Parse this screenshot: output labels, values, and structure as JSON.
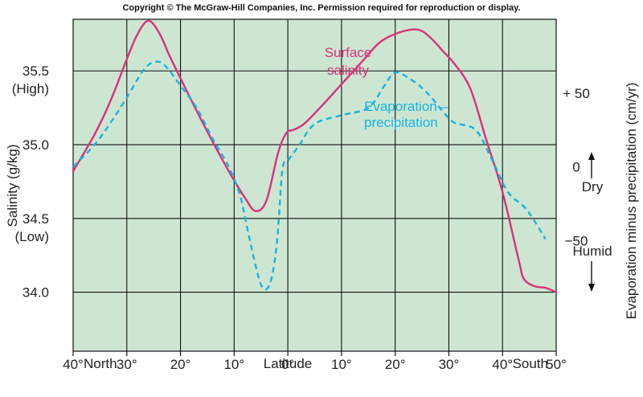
{
  "header": {
    "copyright": "Copyright © The McGraw-Hill Companies, Inc. Permission required for reproduction or display."
  },
  "colors": {
    "plot_background": "#cde6d2",
    "surface_salinity": "#d9317a",
    "evaporation_precipitation": "#1ab2e0",
    "grid": "#111111"
  },
  "chart_data": {
    "type": "line",
    "title": "",
    "xlabel": "Latitude",
    "x_direction_labels": {
      "left": "North",
      "right": "South"
    },
    "x_tick_labels": [
      "40°",
      "30°",
      "20°",
      "10°",
      "0°",
      "10°",
      "20°",
      "30°",
      "40°",
      "50°"
    ],
    "x_ticks_signed": [
      40,
      30,
      20,
      10,
      0,
      -10,
      -20,
      -30,
      -40,
      -50
    ],
    "xlim_signed": [
      40,
      -50
    ],
    "x_note": "signed latitude: positive = North, negative = South",
    "ylabel_left": "Salinity (g/kg)",
    "y_left_ticks": [
      {
        "value": 35.5,
        "label": "35.5",
        "sublabel": "(High)"
      },
      {
        "value": 35.0,
        "label": "35.0",
        "sublabel": ""
      },
      {
        "value": 34.5,
        "label": "34.5",
        "sublabel": "(Low)"
      },
      {
        "value": 34.0,
        "label": "34.0",
        "sublabel": ""
      }
    ],
    "ylim_left": [
      33.6,
      35.85
    ],
    "ylabel_right": "Evaporation minus precipitation (cm/yr)",
    "y_right_ticks": [
      {
        "value": 50,
        "label": "+ 50"
      },
      {
        "value": 0,
        "label": "0"
      },
      {
        "value": -50,
        "label": "−50"
      }
    ],
    "ylim_right": [
      -125,
      100
    ],
    "right_axis_annotations": {
      "upper": "Dry",
      "lower": "Humid"
    },
    "grid": true,
    "series": [
      {
        "name": "Surface salinity",
        "label_lines": [
          "Surface",
          "salinity"
        ],
        "axis": "left",
        "style": "solid",
        "x": [
          40,
          36,
          33,
          30,
          28,
          26,
          24,
          22,
          20,
          17,
          14,
          11,
          8,
          6,
          4,
          2,
          1,
          0,
          -1,
          -3,
          -6,
          -10,
          -14,
          -17,
          -20,
          -23,
          -25,
          -27,
          -29,
          -31,
          -34,
          -37,
          -40,
          -43,
          -44,
          -46,
          -48,
          -50
        ],
        "y": [
          34.82,
          35.07,
          35.3,
          35.58,
          35.75,
          35.84,
          35.76,
          35.6,
          35.45,
          35.23,
          35.02,
          34.82,
          34.64,
          34.55,
          34.62,
          34.92,
          35.03,
          35.09,
          35.1,
          35.14,
          35.25,
          35.41,
          35.57,
          35.69,
          35.75,
          35.78,
          35.77,
          35.71,
          35.63,
          35.55,
          35.38,
          35.03,
          34.68,
          34.22,
          34.09,
          34.04,
          34.03,
          34.0
        ]
      },
      {
        "name": "Evaporation − precipitation",
        "label_lines": [
          "Evaporation –",
          "precipitation"
        ],
        "axis": "right",
        "style": "dashed",
        "x": [
          40,
          36,
          33,
          30,
          27,
          25,
          23,
          20,
          17,
          14,
          11,
          9,
          8,
          7,
          6,
          5,
          4,
          3,
          2,
          1,
          0,
          -2,
          -5,
          -10,
          -15,
          -18,
          -20,
          -23,
          -26,
          -29,
          -31,
          -35,
          -38,
          -41,
          -44,
          -46,
          -48
        ],
        "y": [
          0,
          15,
          30,
          47,
          65,
          71,
          69,
          55,
          40,
          19,
          0,
          -18,
          -34,
          -51,
          -67,
          -80,
          -83,
          -75,
          -50,
          -2,
          4,
          14,
          29,
          35,
          40,
          55,
          64,
          59,
          50,
          37,
          30,
          25,
          5,
          -17,
          -27,
          -37,
          -49
        ]
      }
    ]
  }
}
